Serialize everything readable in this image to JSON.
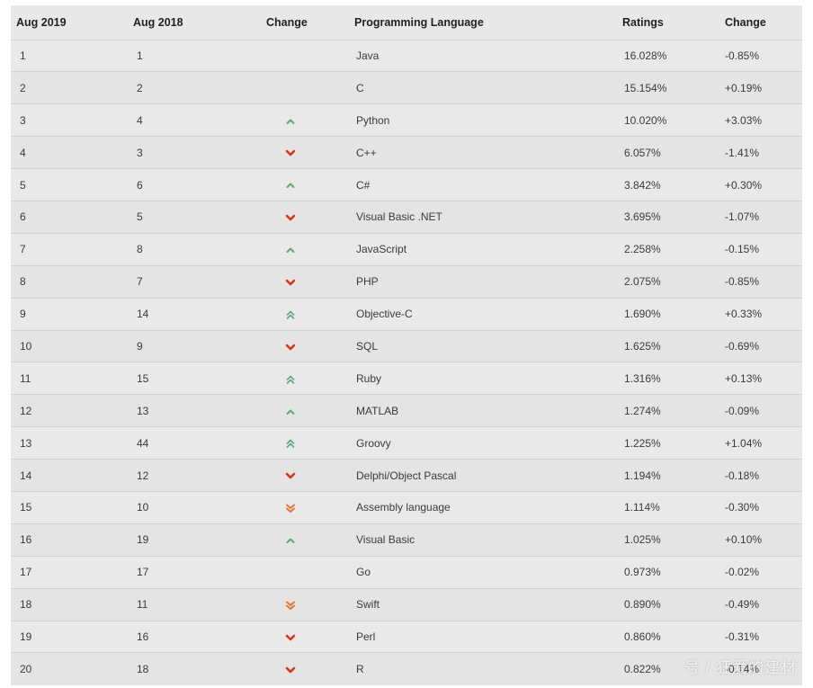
{
  "table": {
    "headers": [
      "Aug 2019",
      "Aug 2018",
      "Change",
      "Programming Language",
      "Ratings",
      "Change"
    ],
    "rows": [
      {
        "rank_2019": "1",
        "rank_2018": "1",
        "trend": "none",
        "language": "Java",
        "rating": "16.028%",
        "change": "-0.85%"
      },
      {
        "rank_2019": "2",
        "rank_2018": "2",
        "trend": "none",
        "language": "C",
        "rating": "15.154%",
        "change": "+0.19%"
      },
      {
        "rank_2019": "3",
        "rank_2018": "4",
        "trend": "up",
        "language": "Python",
        "rating": "10.020%",
        "change": "+3.03%"
      },
      {
        "rank_2019": "4",
        "rank_2018": "3",
        "trend": "down",
        "language": "C++",
        "rating": "6.057%",
        "change": "-1.41%"
      },
      {
        "rank_2019": "5",
        "rank_2018": "6",
        "trend": "up",
        "language": "C#",
        "rating": "3.842%",
        "change": "+0.30%"
      },
      {
        "rank_2019": "6",
        "rank_2018": "5",
        "trend": "down",
        "language": "Visual Basic .NET",
        "rating": "3.695%",
        "change": "-1.07%"
      },
      {
        "rank_2019": "7",
        "rank_2018": "8",
        "trend": "up",
        "language": "JavaScript",
        "rating": "2.258%",
        "change": "-0.15%"
      },
      {
        "rank_2019": "8",
        "rank_2018": "7",
        "trend": "down",
        "language": "PHP",
        "rating": "2.075%",
        "change": "-0.85%"
      },
      {
        "rank_2019": "9",
        "rank_2018": "14",
        "trend": "up-double",
        "language": "Objective-C",
        "rating": "1.690%",
        "change": "+0.33%"
      },
      {
        "rank_2019": "10",
        "rank_2018": "9",
        "trend": "down",
        "language": "SQL",
        "rating": "1.625%",
        "change": "-0.69%"
      },
      {
        "rank_2019": "11",
        "rank_2018": "15",
        "trend": "up-double",
        "language": "Ruby",
        "rating": "1.316%",
        "change": "+0.13%"
      },
      {
        "rank_2019": "12",
        "rank_2018": "13",
        "trend": "up",
        "language": "MATLAB",
        "rating": "1.274%",
        "change": "-0.09%"
      },
      {
        "rank_2019": "13",
        "rank_2018": "44",
        "trend": "up-double",
        "language": "Groovy",
        "rating": "1.225%",
        "change": "+1.04%"
      },
      {
        "rank_2019": "14",
        "rank_2018": "12",
        "trend": "down",
        "language": "Delphi/Object Pascal",
        "rating": "1.194%",
        "change": "-0.18%"
      },
      {
        "rank_2019": "15",
        "rank_2018": "10",
        "trend": "down-double",
        "language": "Assembly language",
        "rating": "1.114%",
        "change": "-0.30%"
      },
      {
        "rank_2019": "16",
        "rank_2018": "19",
        "trend": "up",
        "language": "Visual Basic",
        "rating": "1.025%",
        "change": "+0.10%"
      },
      {
        "rank_2019": "17",
        "rank_2018": "17",
        "trend": "none",
        "language": "Go",
        "rating": "0.973%",
        "change": "-0.02%"
      },
      {
        "rank_2019": "18",
        "rank_2018": "11",
        "trend": "down-double",
        "language": "Swift",
        "rating": "0.890%",
        "change": "-0.49%"
      },
      {
        "rank_2019": "19",
        "rank_2018": "16",
        "trend": "down",
        "language": "Perl",
        "rating": "0.860%",
        "change": "-0.31%"
      },
      {
        "rank_2019": "20",
        "rank_2018": "18",
        "trend": "down",
        "language": "R",
        "rating": "0.822%",
        "change": "-0.14%"
      }
    ]
  },
  "icons": {
    "up": "chevron-up-icon",
    "up-double": "double-chevron-up-icon",
    "down": "chevron-down-icon",
    "down-double": "double-chevron-down-icon"
  },
  "colors": {
    "up": "#5aa877",
    "down": "#d4361f",
    "down_double": "#e0763a",
    "header_bg": "#e8e8e8",
    "row_bg": "#e9e9e9"
  },
  "watermark": {
    "text": "号 / 狂爱的建材"
  }
}
